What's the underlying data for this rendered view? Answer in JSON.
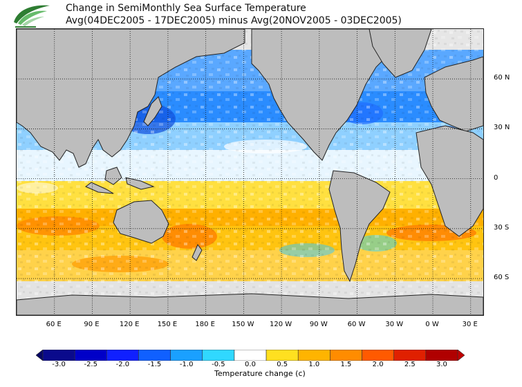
{
  "header": {
    "title_line1": "Change in SemiMonthly Sea Surface Temperature",
    "title_line2": "Avg(04DEC2005 - 17DEC2005) minus Avg(20NOV2005 - 03DEC2005)"
  },
  "axes": {
    "lat_labels": [
      {
        "label": "60 N",
        "lat": 60
      },
      {
        "label": "30 N",
        "lat": 30
      },
      {
        "label": "0",
        "lat": 0
      },
      {
        "label": "30 S",
        "lat": -30
      },
      {
        "label": "60 S",
        "lat": -60
      }
    ],
    "lon_labels": [
      {
        "label": "60 E",
        "lon": 60
      },
      {
        "label": "90 E",
        "lon": 90
      },
      {
        "label": "120 E",
        "lon": 120
      },
      {
        "label": "150 E",
        "lon": 150
      },
      {
        "label": "180 E",
        "lon": 180
      },
      {
        "label": "150 W",
        "lon": 210
      },
      {
        "label": "120 W",
        "lon": 240
      },
      {
        "label": "90 W",
        "lon": 270
      },
      {
        "label": "60 W",
        "lon": 300
      },
      {
        "label": "30 W",
        "lon": 330
      },
      {
        "label": "0 W",
        "lon": 360
      },
      {
        "label": "30 E",
        "lon": 390
      }
    ],
    "lon_range": [
      30,
      400
    ],
    "lat_range": [
      -82,
      90
    ]
  },
  "legend": {
    "title": "Temperature change  (c)",
    "labels": [
      "-3.0",
      "-2.5",
      "-2.0",
      "-1.5",
      "-1.0",
      "-0.5",
      "0.0",
      "0.5",
      "1.0",
      "1.5",
      "2.0",
      "2.5",
      "3.0"
    ],
    "colors": [
      "#0a0a8c",
      "#0000c8",
      "#1020ff",
      "#1060ff",
      "#1aa0ff",
      "#30d8ff",
      "#ffffff",
      "#ffe020",
      "#ffb400",
      "#ff8c00",
      "#ff5a00",
      "#e02000",
      "#b00000"
    ],
    "end_low": "#060664",
    "end_high": "#c00000"
  },
  "map_colors": {
    "land": "#bdbdbd",
    "ice": "#d9d9d9",
    "coast": "#222222",
    "grid": "#111111"
  }
}
